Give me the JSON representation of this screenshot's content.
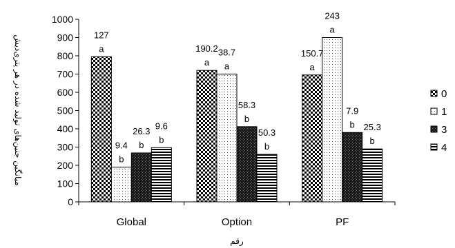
{
  "chart_data": {
    "type": "bar",
    "title": "",
    "xlabel": "رقم",
    "ylabel": "میانگین جنین‌های تولید شده در هر پتری‌دیش",
    "ylim": [
      0,
      1000
    ],
    "yticks": [
      0,
      100,
      200,
      300,
      400,
      500,
      600,
      700,
      800,
      900,
      1000
    ],
    "categories": [
      "Global",
      "Option",
      "PF"
    ],
    "grid": false,
    "legend_position": "right",
    "series": [
      {
        "name": "0",
        "pattern": "checker",
        "values": [
          795,
          720,
          695
        ],
        "value_labels": [
          "127",
          "190.2",
          "150.7"
        ],
        "letters": [
          "a",
          "a",
          "a"
        ]
      },
      {
        "name": "1",
        "pattern": "dots",
        "values": [
          190,
          700,
          900
        ],
        "value_labels": [
          "9.4",
          "38.7",
          "243"
        ],
        "letters": [
          "b",
          "a",
          "a"
        ]
      },
      {
        "name": "3",
        "pattern": "dark",
        "values": [
          268,
          412,
          380
        ],
        "value_labels": [
          "26.3",
          "58.3",
          "7.9"
        ],
        "letters": [
          "b",
          "b",
          "b"
        ]
      },
      {
        "name": "4",
        "pattern": "hlines",
        "values": [
          297,
          260,
          290
        ],
        "value_labels": [
          "9.6",
          "50.3",
          "25.3"
        ],
        "letters": [
          "b",
          "b",
          "b"
        ]
      }
    ]
  }
}
